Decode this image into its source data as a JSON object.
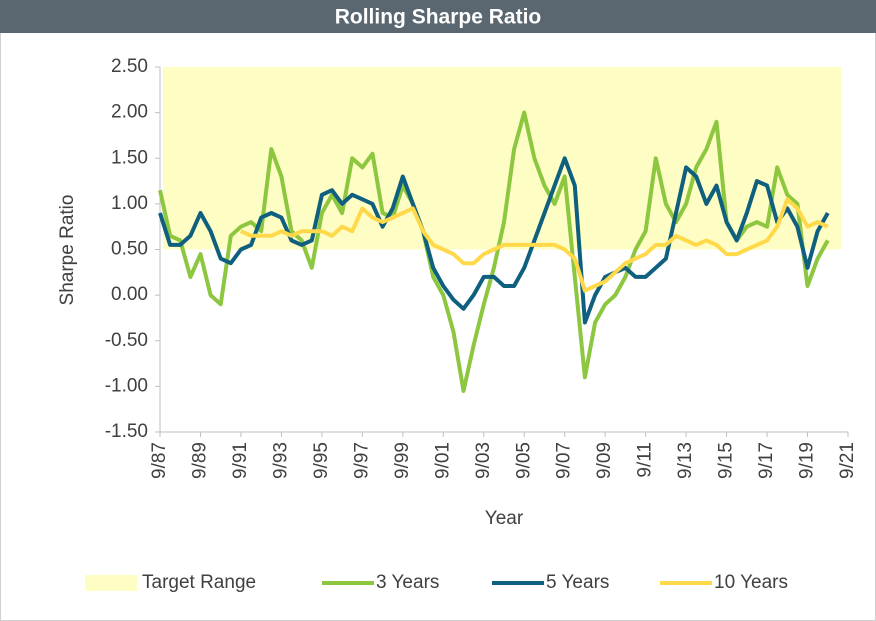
{
  "chart_data": {
    "type": "line",
    "title": "Rolling Sharpe Ratio",
    "xlabel": "Year",
    "ylabel": "Sharpe Ratio",
    "target_range": {
      "name": "Target Range",
      "color": "#fdfdc4",
      "range": [
        0.5,
        2.5
      ]
    },
    "x": [
      1987.75,
      1988.25,
      1988.75,
      1989.25,
      1989.75,
      1990.25,
      1990.75,
      1991.25,
      1991.75,
      1992.25,
      1992.75,
      1993.25,
      1993.75,
      1994.25,
      1994.75,
      1995.25,
      1995.75,
      1996.25,
      1996.75,
      1997.25,
      1997.75,
      1998.25,
      1998.75,
      1999.25,
      1999.75,
      2000.25,
      2000.75,
      2001.25,
      2001.75,
      2002.25,
      2002.75,
      2003.25,
      2003.75,
      2004.25,
      2004.75,
      2005.25,
      2005.75,
      2006.25,
      2006.75,
      2007.25,
      2007.75,
      2008.25,
      2008.75,
      2009.25,
      2009.75,
      2010.25,
      2010.75,
      2011.25,
      2011.75,
      2012.25,
      2012.75,
      2013.25,
      2013.75,
      2014.25,
      2014.75,
      2015.25,
      2015.75,
      2016.25,
      2016.75,
      2017.25,
      2017.75,
      2018.25,
      2018.75,
      2019.25,
      2019.75,
      2020.25,
      2020.75
    ],
    "series": [
      {
        "name": "3 Years",
        "color": "#8dc63f",
        "values": [
          1.15,
          0.65,
          0.6,
          0.2,
          0.45,
          0.0,
          -0.1,
          0.65,
          0.75,
          0.8,
          0.7,
          1.6,
          1.3,
          0.7,
          0.6,
          0.3,
          0.9,
          1.1,
          0.9,
          1.5,
          1.4,
          1.55,
          0.9,
          0.85,
          1.2,
          1.0,
          0.7,
          0.2,
          0.0,
          -0.4,
          -1.05,
          -0.55,
          -0.1,
          0.3,
          0.8,
          1.6,
          2.0,
          1.5,
          1.2,
          1.0,
          1.3,
          0.2,
          -0.9,
          -0.3,
          -0.1,
          0.0,
          0.2,
          0.5,
          0.7,
          1.5,
          1.0,
          0.8,
          1.0,
          1.4,
          1.6,
          1.9,
          0.8,
          0.6,
          0.75,
          0.8,
          0.75,
          1.4,
          1.1,
          1.0,
          0.1,
          0.4,
          0.6
        ]
      },
      {
        "name": "5 Years",
        "color": "#0f5f7f",
        "values": [
          0.9,
          0.55,
          0.55,
          0.65,
          0.9,
          0.7,
          0.4,
          0.35,
          0.5,
          0.55,
          0.85,
          0.9,
          0.85,
          0.6,
          0.55,
          0.6,
          1.1,
          1.15,
          1.0,
          1.1,
          1.05,
          1.0,
          0.75,
          0.95,
          1.3,
          1.0,
          0.7,
          0.3,
          0.1,
          -0.05,
          -0.15,
          0.0,
          0.2,
          0.2,
          0.1,
          0.1,
          0.3,
          0.6,
          0.9,
          1.2,
          1.5,
          1.2,
          -0.3,
          0.0,
          0.2,
          0.25,
          0.3,
          0.2,
          0.2,
          0.3,
          0.4,
          0.9,
          1.4,
          1.3,
          1.0,
          1.2,
          0.8,
          0.6,
          0.9,
          1.25,
          1.2,
          0.8,
          0.95,
          0.75,
          0.3,
          0.7,
          0.9
        ]
      },
      {
        "name": "10 Years",
        "color": "#ffd94a",
        "values": [
          null,
          null,
          null,
          null,
          null,
          null,
          null,
          null,
          0.7,
          0.65,
          0.65,
          0.65,
          0.7,
          0.65,
          0.7,
          0.7,
          0.7,
          0.65,
          0.75,
          0.7,
          0.95,
          0.85,
          0.8,
          0.85,
          0.9,
          0.95,
          0.7,
          0.55,
          0.5,
          0.45,
          0.35,
          0.35,
          0.45,
          0.5,
          0.55,
          0.55,
          0.55,
          0.55,
          0.55,
          0.55,
          0.5,
          0.4,
          0.05,
          0.1,
          0.15,
          0.25,
          0.35,
          0.4,
          0.45,
          0.55,
          0.55,
          0.65,
          0.6,
          0.55,
          0.6,
          0.55,
          0.45,
          0.45,
          0.5,
          0.55,
          0.6,
          0.75,
          1.05,
          0.95,
          0.75,
          0.8,
          0.75
        ]
      }
    ],
    "xlim": [
      1987.75,
      2021.75
    ],
    "xticks": [
      {
        "value": 1987.75,
        "label": "9/87"
      },
      {
        "value": 1989.75,
        "label": "9/89"
      },
      {
        "value": 1991.75,
        "label": "9/91"
      },
      {
        "value": 1993.75,
        "label": "9/93"
      },
      {
        "value": 1995.75,
        "label": "9/95"
      },
      {
        "value": 1997.75,
        "label": "9/97"
      },
      {
        "value": 1999.75,
        "label": "9/99"
      },
      {
        "value": 2001.75,
        "label": "9/01"
      },
      {
        "value": 2003.75,
        "label": "9/03"
      },
      {
        "value": 2005.75,
        "label": "9/05"
      },
      {
        "value": 2007.75,
        "label": "9/07"
      },
      {
        "value": 2009.75,
        "label": "9/09"
      },
      {
        "value": 2011.75,
        "label": "9/11"
      },
      {
        "value": 2013.75,
        "label": "9/13"
      },
      {
        "value": 2015.75,
        "label": "9/15"
      },
      {
        "value": 2017.75,
        "label": "9/17"
      },
      {
        "value": 2019.75,
        "label": "9/19"
      },
      {
        "value": 2021.75,
        "label": "9/21"
      }
    ],
    "ylim": [
      -1.5,
      2.5
    ],
    "yticks": [
      {
        "value": -1.5,
        "label": "-1.50"
      },
      {
        "value": -1.0,
        "label": "-1.00"
      },
      {
        "value": -0.5,
        "label": "-0.50"
      },
      {
        "value": 0,
        "label": "0.00"
      },
      {
        "value": 0.5,
        "label": "0.50"
      },
      {
        "value": 1.0,
        "label": "1.00"
      },
      {
        "value": 1.5,
        "label": "1.50"
      },
      {
        "value": 2.0,
        "label": "2.00"
      },
      {
        "value": 2.5,
        "label": "2.50"
      }
    ],
    "grid": false,
    "legend": "bottom"
  }
}
